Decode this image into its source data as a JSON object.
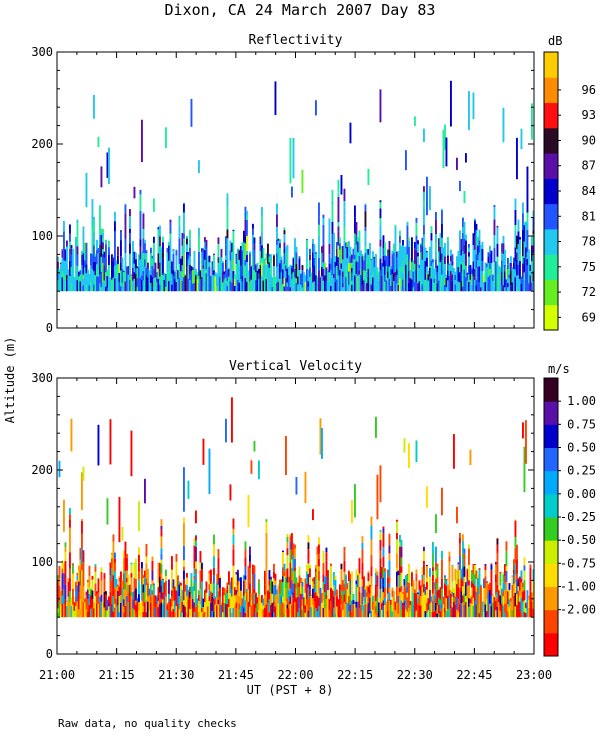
{
  "page": {
    "title": "Dixon, CA 24 March 2007  Day  83",
    "footnote": "Raw data, no quality checks",
    "ylabel": "Altitude (m)",
    "xlabel": "UT  (PST + 8)"
  },
  "chart_data": [
    {
      "type": "heatmap",
      "title": "Reflectivity",
      "xlabel": "UT  (PST + 8)",
      "ylabel": "Altitude (m)",
      "x_range_hours": [
        21.0,
        23.0
      ],
      "ylim": [
        0,
        300
      ],
      "ytick_values": [
        0,
        100,
        200,
        300
      ],
      "xtick_labels": [
        "21:00",
        "21:15",
        "21:30",
        "21:45",
        "22:00",
        "22:15",
        "22:30",
        "22:45",
        "23:00"
      ],
      "colorbar": {
        "unit": "dB",
        "labels": [
          "69",
          "72",
          "75",
          "78",
          "81",
          "84",
          "87",
          "90",
          "93",
          "96"
        ],
        "colors": [
          "#d4ff00",
          "#66ee22",
          "#22ee99",
          "#22c8ee",
          "#2255ff",
          "#0000cc",
          "#5a0fa8",
          "#2a0a24",
          "#ff1010",
          "#ff8c00",
          "#ffcc00"
        ]
      },
      "data_extent": {
        "min_altitude": 40,
        "typical_top": 100,
        "max_altitude": 300
      },
      "palette_weights": [
        0.01,
        0.02,
        0.17,
        0.34,
        0.22,
        0.14,
        0.08,
        0.02,
        0.0,
        0.0,
        0.0
      ]
    },
    {
      "type": "heatmap",
      "title": "Vertical Velocity",
      "xlabel": "UT  (PST + 8)",
      "ylabel": "Altitude (m)",
      "x_range_hours": [
        21.0,
        23.0
      ],
      "ylim": [
        0,
        300
      ],
      "ytick_values": [
        0,
        100,
        200,
        300
      ],
      "xtick_labels": [
        "21:00",
        "21:15",
        "21:30",
        "21:45",
        "22:00",
        "22:15",
        "22:30",
        "22:45",
        "23:00"
      ],
      "colorbar": {
        "unit": "m/s",
        "labels": [
          "1.00",
          "0.75",
          "0.50",
          "0.25",
          "0.00",
          "-0.25",
          "-0.50",
          "-0.75",
          "-1.00",
          "-2.00"
        ],
        "colors": [
          "#ff0000",
          "#ff4400",
          "#ff9900",
          "#ffdd00",
          "#ccee00",
          "#33cc22",
          "#00cccc",
          "#00aaff",
          "#2266ff",
          "#0000cc",
          "#5a0fa8",
          "#330022"
        ]
      },
      "data_extent": {
        "min_altitude": 40,
        "typical_top": 100,
        "max_altitude": 300
      },
      "palette_weights": [
        0.22,
        0.18,
        0.14,
        0.1,
        0.07,
        0.06,
        0.05,
        0.06,
        0.05,
        0.03,
        0.03,
        0.01
      ]
    }
  ]
}
